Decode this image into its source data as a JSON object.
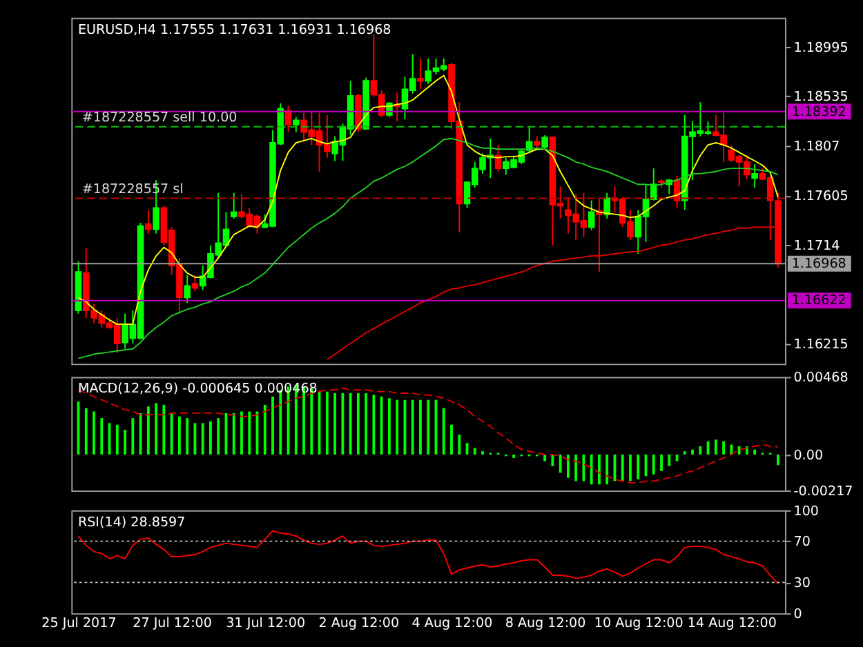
{
  "chart_data": [
    {
      "type": "candlestick",
      "title": "EURUSD,H4  1.17555 1.17631 1.16931 1.16968",
      "categories": [
        null,
        null,
        null,
        null,
        null,
        null,
        null,
        null,
        null,
        null,
        null,
        null,
        null,
        null,
        null,
        null,
        null,
        null,
        null,
        null,
        null,
        null,
        null,
        null,
        null,
        null,
        null,
        null,
        null,
        null,
        null,
        null,
        null,
        null,
        null,
        null,
        null,
        null,
        null,
        null,
        null,
        null,
        null,
        null,
        null,
        null,
        null,
        null,
        null,
        null,
        null,
        null,
        null,
        null,
        null,
        null,
        null,
        null,
        null,
        null,
        null,
        null,
        null,
        null,
        null,
        null,
        null,
        null,
        null,
        null,
        null,
        null,
        null,
        null,
        null,
        null,
        null,
        null,
        null,
        null,
        null,
        null,
        null,
        null,
        null,
        null,
        null,
        null,
        null,
        null,
        null
      ],
      "ohlc": [
        [
          1.1653,
          1.1699,
          1.165,
          1.1689
        ],
        [
          1.1688,
          1.1711,
          1.1646,
          1.1653
        ],
        [
          1.1653,
          1.1659,
          1.1641,
          1.1646
        ],
        [
          1.1649,
          1.1653,
          1.1637,
          1.1641
        ],
        [
          1.1641,
          1.1646,
          1.1636,
          1.1637
        ],
        [
          1.164,
          1.1646,
          1.1613,
          1.1622
        ],
        [
          1.1623,
          1.165,
          1.1617,
          1.164
        ],
        [
          1.1627,
          1.1653,
          1.1622,
          1.164
        ],
        [
          1.1627,
          1.1735,
          1.1626,
          1.1732
        ],
        [
          1.1734,
          1.1747,
          1.1725,
          1.1729
        ],
        [
          1.1729,
          1.1775,
          1.1725,
          1.1749
        ],
        [
          1.1749,
          1.1751,
          1.1714,
          1.1717
        ],
        [
          1.1728,
          1.1731,
          1.1686,
          1.1695
        ],
        [
          1.1696,
          1.1702,
          1.165,
          1.1665
        ],
        [
          1.1665,
          1.1686,
          1.166,
          1.1676
        ],
        [
          1.1678,
          1.1686,
          1.1671,
          1.1674
        ],
        [
          1.1676,
          1.1695,
          1.1672,
          1.1685
        ],
        [
          1.1684,
          1.1714,
          1.1683,
          1.1706
        ],
        [
          1.1705,
          1.1763,
          1.1702,
          1.1716
        ],
        [
          1.1714,
          1.1745,
          1.1713,
          1.1729
        ],
        [
          1.1741,
          1.1763,
          1.1739,
          1.1745
        ],
        [
          1.1745,
          1.1762,
          1.1739,
          1.1741
        ],
        [
          1.1743,
          1.1749,
          1.1731,
          1.1732
        ],
        [
          1.1741,
          1.1743,
          1.1725,
          1.1731
        ],
        [
          1.1731,
          1.1743,
          1.173,
          1.1734
        ],
        [
          1.1732,
          1.1822,
          1.1731,
          1.181
        ],
        [
          1.1809,
          1.1847,
          1.1808,
          1.1842
        ],
        [
          1.184,
          1.1845,
          1.182,
          1.1827
        ],
        [
          1.1827,
          1.1834,
          1.182,
          1.1831
        ],
        [
          1.1831,
          1.1838,
          1.1811,
          1.182
        ],
        [
          1.1822,
          1.1839,
          1.1808,
          1.1816
        ],
        [
          1.1821,
          1.1838,
          1.1783,
          1.1808
        ],
        [
          1.1808,
          1.1836,
          1.1796,
          1.1802
        ],
        [
          1.18,
          1.1816,
          1.1793,
          1.1811
        ],
        [
          1.1808,
          1.1828,
          1.1793,
          1.1825
        ],
        [
          1.1823,
          1.1868,
          1.1817,
          1.1854
        ],
        [
          1.1854,
          1.1856,
          1.182,
          1.1823
        ],
        [
          1.1823,
          1.1871,
          1.1822,
          1.1868
        ],
        [
          1.1868,
          1.1911,
          1.1853,
          1.1855
        ],
        [
          1.1855,
          1.1859,
          1.1834,
          1.1836
        ],
        [
          1.1836,
          1.1848,
          1.1834,
          1.1847
        ],
        [
          1.1845,
          1.1857,
          1.183,
          1.1844
        ],
        [
          1.1842,
          1.1872,
          1.1832,
          1.186
        ],
        [
          1.1859,
          1.1893,
          1.1856,
          1.187
        ],
        [
          1.187,
          1.1889,
          1.186,
          1.1868
        ],
        [
          1.1868,
          1.1889,
          1.1865,
          1.1877
        ],
        [
          1.1877,
          1.1889,
          1.1874,
          1.188
        ],
        [
          1.1879,
          1.1889,
          1.1877,
          1.1882
        ],
        [
          1.1883,
          1.1885,
          1.1823,
          1.183
        ],
        [
          1.183,
          1.1848,
          1.1726,
          1.1753
        ],
        [
          1.1753,
          1.1774,
          1.1749,
          1.1773
        ],
        [
          1.1771,
          1.1792,
          1.1768,
          1.1786
        ],
        [
          1.1785,
          1.18,
          1.1781,
          1.1796
        ],
        [
          1.1796,
          1.1814,
          1.1777,
          1.1798
        ],
        [
          1.1798,
          1.1808,
          1.1783,
          1.1786
        ],
        [
          1.1786,
          1.1796,
          1.178,
          1.1792
        ],
        [
          1.1787,
          1.1798,
          1.1786,
          1.1794
        ],
        [
          1.1792,
          1.1804,
          1.179,
          1.1802
        ],
        [
          1.1803,
          1.1825,
          1.18,
          1.1811
        ],
        [
          1.1811,
          1.1816,
          1.1805,
          1.1808
        ],
        [
          1.1806,
          1.1817,
          1.1805,
          1.1815
        ],
        [
          1.1815,
          1.1816,
          1.1714,
          1.1752
        ],
        [
          1.1753,
          1.1769,
          1.1739,
          1.1751
        ],
        [
          1.1747,
          1.1759,
          1.1725,
          1.1742
        ],
        [
          1.1743,
          1.1762,
          1.1719,
          1.1736
        ],
        [
          1.1737,
          1.1763,
          1.1722,
          1.1731
        ],
        [
          1.1731,
          1.1756,
          1.1728,
          1.1745
        ],
        [
          1.1746,
          1.1759,
          1.1689,
          1.1743
        ],
        [
          1.1743,
          1.1763,
          1.1739,
          1.1758
        ],
        [
          1.1758,
          1.1769,
          1.1745,
          1.1756
        ],
        [
          1.1757,
          1.1759,
          1.1731,
          1.1735
        ],
        [
          1.1736,
          1.1747,
          1.1719,
          1.1722
        ],
        [
          1.1722,
          1.1747,
          1.1706,
          1.1741
        ],
        [
          1.1741,
          1.1771,
          1.1717,
          1.1757
        ],
        [
          1.1757,
          1.1786,
          1.1756,
          1.1771
        ],
        [
          1.1774,
          1.1776,
          1.1768,
          1.1773
        ],
        [
          1.1771,
          1.1776,
          1.1762,
          1.1775
        ],
        [
          1.1775,
          1.1779,
          1.1749,
          1.1756
        ],
        [
          1.1756,
          1.1836,
          1.1747,
          1.1816
        ],
        [
          1.1816,
          1.183,
          1.1775,
          1.182
        ],
        [
          1.1819,
          1.1848,
          1.1816,
          1.1821
        ],
        [
          1.1819,
          1.183,
          1.1817,
          1.182
        ],
        [
          1.182,
          1.1836,
          1.1816,
          1.1817
        ],
        [
          1.1817,
          1.1838,
          1.1792,
          1.1808
        ],
        [
          1.1803,
          1.1808,
          1.1792,
          1.1794
        ],
        [
          1.1797,
          1.1799,
          1.1769,
          1.1792
        ],
        [
          1.1792,
          1.1798,
          1.1776,
          1.178
        ],
        [
          1.1777,
          1.179,
          1.1768,
          1.1781
        ],
        [
          1.1781,
          1.1786,
          1.1775,
          1.1776
        ],
        [
          1.1777,
          1.1779,
          1.1719,
          1.1756
        ],
        [
          1.17555,
          1.17631,
          1.16931,
          1.16968
        ]
      ],
      "colors": [
        "#00ff00",
        "#ff0000",
        "#ff0000",
        "#ff0000",
        "#ff0000",
        "#ff0000",
        "#00ff00",
        "#00ff00",
        "#00ff00",
        "#ff0000",
        "#00ff00",
        "#ff0000",
        "#ff0000",
        "#ff0000",
        "#00ff00",
        "#ff0000",
        "#00ff00",
        "#00ff00",
        "#00ff00",
        "#00ff00",
        "#00ff00",
        "#ff0000",
        "#ff0000",
        "#ff0000",
        "#00ff00",
        "#00ff00",
        "#00ff00",
        "#ff0000",
        "#00ff00",
        "#ff0000",
        "#ff0000",
        "#ff0000",
        "#ff0000",
        "#00ff00",
        "#00ff00",
        "#00ff00",
        "#ff0000",
        "#00ff00",
        "#ff0000",
        "#ff0000",
        "#00ff00",
        "#ff0000",
        "#00ff00",
        "#00ff00",
        "#ff0000",
        "#00ff00",
        "#00ff00",
        "#00ff00",
        "#ff0000",
        "#ff0000",
        "#00ff00",
        "#00ff00",
        "#00ff00",
        "#00ff00",
        "#ff0000",
        "#00ff00",
        "#00ff00",
        "#00ff00",
        "#00ff00",
        "#ff0000",
        "#00ff00",
        "#ff0000",
        "#ff0000",
        "#ff0000",
        "#ff0000",
        "#ff0000",
        "#00ff00",
        "#ff0000",
        "#00ff00",
        "#ff0000",
        "#ff0000",
        "#ff0000",
        "#00ff00",
        "#00ff00",
        "#00ff00",
        "#ff0000",
        "#00ff00",
        "#ff0000",
        "#00ff00",
        "#00ff00",
        "#00ff00",
        "#00ff00",
        "#ff0000",
        "#ff0000",
        "#ff0000",
        "#ff0000",
        "#ff0000",
        "#00ff00",
        "#ff0000",
        "#ff0000",
        "#ff0000"
      ],
      "series": [
        {
          "type": "line",
          "color": "#ffff00",
          "values": [
            1.1665,
            1.1661,
            1.1654,
            1.1649,
            1.1644,
            1.164,
            1.164,
            1.164,
            1.1671,
            1.1691,
            1.1704,
            1.1712,
            1.1707,
            1.1696,
            1.1688,
            1.1684,
            1.1684,
            1.1693,
            1.1702,
            1.1713,
            1.1724,
            1.1728,
            1.1732,
            1.1731,
            1.1738,
            1.1755,
            1.1784,
            1.1801,
            1.181,
            1.1812,
            1.1814,
            1.1811,
            1.1809,
            1.1811,
            1.1812,
            1.1815,
            1.1826,
            1.1836,
            1.1843,
            1.1844,
            1.1844,
            1.1846,
            1.1847,
            1.185,
            1.1856,
            1.1862,
            1.1868,
            1.1873,
            1.1858,
            1.1832,
            1.1808,
            1.1802,
            1.1798,
            1.1797,
            1.1796,
            1.1797,
            1.1797,
            1.1798,
            1.1801,
            1.1804,
            1.1804,
            1.1798,
            1.1783,
            1.177,
            1.1757,
            1.1751,
            1.1748,
            1.1745,
            1.1744,
            1.1743,
            1.1742,
            1.174,
            1.1741,
            1.1746,
            1.1751,
            1.1757,
            1.1759,
            1.1761,
            1.1765,
            1.1784,
            1.1798,
            1.1808,
            1.181,
            1.1808,
            1.1805,
            1.1801,
            1.1797,
            1.1793,
            1.1789,
            1.1782,
            1.1759
          ]
        },
        {
          "type": "line",
          "color": "#22cc22",
          "values": [
            1.1608,
            1.161,
            1.1612,
            1.1613,
            1.1614,
            1.1615,
            1.1616,
            1.1617,
            1.1623,
            1.1631,
            1.1637,
            1.1642,
            1.1648,
            1.1651,
            1.1654,
            1.1656,
            1.1659,
            1.1661,
            1.1665,
            1.1668,
            1.1671,
            1.1675,
            1.1678,
            1.1683,
            1.1688,
            1.1696,
            1.1704,
            1.1712,
            1.1718,
            1.1724,
            1.173,
            1.1735,
            1.1739,
            1.1744,
            1.175,
            1.1758,
            1.1763,
            1.1768,
            1.1774,
            1.1777,
            1.1781,
            1.1785,
            1.1788,
            1.1792,
            1.1797,
            1.1802,
            1.1807,
            1.1813,
            1.1814,
            1.1812,
            1.181,
            1.1807,
            1.1805,
            1.1805,
            1.1804,
            1.1804,
            1.1804,
            1.1804,
            1.1804,
            1.1805,
            1.1804,
            1.1802,
            1.1799,
            1.1796,
            1.1792,
            1.179,
            1.1787,
            1.1785,
            1.1783,
            1.178,
            1.1777,
            1.1774,
            1.1771,
            1.1771,
            1.177,
            1.1771,
            1.1773,
            1.1775,
            1.1778,
            1.1781,
            1.1781,
            1.1782,
            1.1783,
            1.1785,
            1.1786,
            1.1786,
            1.1786,
            1.1785,
            1.1784,
            1.1783,
            1.178
          ]
        },
        {
          "type": "line",
          "color": "#e00000",
          "values": [
            null,
            null,
            null,
            null,
            null,
            null,
            null,
            null,
            null,
            null,
            null,
            null,
            null,
            null,
            null,
            null,
            null,
            null,
            null,
            null,
            null,
            null,
            null,
            null,
            null,
            null,
            null,
            null,
            null,
            null,
            null,
            null,
            1.1607,
            1.1612,
            1.1617,
            1.1622,
            1.1627,
            1.1632,
            1.1636,
            1.164,
            1.1644,
            1.1648,
            1.1652,
            1.1656,
            1.166,
            1.1663,
            1.1666,
            1.167,
            1.1673,
            1.1674,
            1.1676,
            1.1677,
            1.1679,
            1.1681,
            1.1683,
            1.1685,
            1.1687,
            1.1689,
            1.1692,
            1.1695,
            1.1697,
            1.1699,
            1.17,
            1.1701,
            1.1702,
            1.1703,
            1.1704,
            1.1704,
            1.1705,
            1.1706,
            1.1707,
            1.1708,
            1.1708,
            1.171,
            1.1712,
            1.1714,
            1.1715,
            1.1717,
            1.1719,
            1.172,
            1.1722,
            1.1724,
            1.1725,
            1.1727,
            1.1728,
            1.173,
            1.173,
            1.1731,
            1.1731,
            1.1731,
            1.1731
          ]
        }
      ],
      "ref_lines": [
        {
          "axis": "y",
          "value": 1.18392,
          "label": "1.18392",
          "color": "#c000c0",
          "line_style": "solid"
        },
        {
          "axis": "y",
          "value": 1.1825,
          "label": "#187228557 sell 10.00",
          "color": "#00c000",
          "line_style": "dashed"
        },
        {
          "axis": "y",
          "value": 1.1758,
          "label": "#187228557 sl",
          "color": "#c00000",
          "line_style": "dashed"
        },
        {
          "axis": "y",
          "value": 1.16968,
          "label": "1.16968",
          "color": "#a0a0a0",
          "line_style": "solid"
        },
        {
          "axis": "y",
          "value": 1.16622,
          "label": "1.16622",
          "color": "#c000c0",
          "line_style": "solid"
        }
      ],
      "ylim": [
        1.1603,
        1.1927
      ],
      "yticks": [
        1.18995,
        1.18535,
        1.1807,
        1.17605,
        1.1714,
        1.16215
      ],
      "tick_labels": "y"
    },
    {
      "type": "bar",
      "title": "MACD(12,26,9) -0.000645 0.000468",
      "color": "#00ff00",
      "categories": [
        null,
        null,
        null,
        null,
        null,
        null,
        null,
        null,
        null,
        null,
        null,
        null,
        null,
        null,
        null,
        null,
        null,
        null,
        null,
        null,
        null,
        null,
        null,
        null,
        null,
        null,
        null,
        null,
        null,
        null,
        null,
        null,
        null,
        null,
        null,
        null,
        null,
        null,
        null,
        null,
        null,
        null,
        null,
        null,
        null,
        null,
        null,
        null,
        null,
        null,
        null,
        null,
        null,
        null,
        null,
        null,
        null,
        null,
        null,
        null,
        null,
        null,
        null,
        null,
        null,
        null,
        null,
        null,
        null,
        null,
        null,
        null,
        null,
        null,
        null,
        null,
        null,
        null,
        null,
        null,
        null,
        null,
        null,
        null,
        null,
        null,
        null,
        null,
        null,
        null,
        null
      ],
      "values": [
        0.0032,
        0.0028,
        0.0026,
        0.0022,
        0.0019,
        0.0018,
        0.0015,
        0.0022,
        0.0025,
        0.0029,
        0.0031,
        0.003,
        0.0025,
        0.0023,
        0.0022,
        0.0019,
        0.0019,
        0.002,
        0.0022,
        0.0025,
        0.0025,
        0.0026,
        0.0026,
        0.0026,
        0.003,
        0.0035,
        0.0039,
        0.0041,
        0.0042,
        0.0041,
        0.004,
        0.0038,
        0.0038,
        0.0037,
        0.0037,
        0.0037,
        0.0037,
        0.0037,
        0.0036,
        0.0035,
        0.0034,
        0.0033,
        0.0033,
        0.0033,
        0.0033,
        0.0033,
        0.0033,
        0.0028,
        0.0018,
        0.0012,
        0.0007,
        0.0004,
        0.0002,
        0.0001,
        0.0001,
        -0.0001,
        -0.0002,
        -0.0001,
        -0.0001,
        -0.0001,
        -0.0004,
        -0.0007,
        -0.0011,
        -0.0014,
        -0.0016,
        -0.0016,
        -0.0018,
        -0.0018,
        -0.0018,
        -0.0016,
        -0.0016,
        -0.0016,
        -0.0015,
        -0.0013,
        -0.0012,
        -0.001,
        -0.0007,
        -0.0004,
        0.0002,
        0.0003,
        0.0005,
        0.0008,
        0.0009,
        0.0008,
        0.0006,
        0.0005,
        0.0005,
        0.0003,
        0.0001,
        0.0001,
        -0.000645
      ],
      "series": [
        {
          "type": "line",
          "color": "#e00000",
          "line_style": "dashed",
          "values": [
            0.0039,
            0.0037,
            0.0035,
            0.0033,
            0.0031,
            0.0029,
            0.0027,
            0.0026,
            0.0024,
            0.0024,
            0.0024,
            0.0024,
            0.0025,
            0.0025,
            0.0025,
            0.0025,
            0.0025,
            0.0025,
            0.0025,
            0.0024,
            0.0024,
            0.0023,
            0.0023,
            0.0024,
            0.0026,
            0.0028,
            0.003,
            0.0032,
            0.0034,
            0.0035,
            0.0037,
            0.0038,
            0.0039,
            0.0039,
            0.004,
            0.0039,
            0.0039,
            0.0039,
            0.0038,
            0.0038,
            0.0038,
            0.0037,
            0.0037,
            0.0037,
            0.0036,
            0.0036,
            0.0035,
            0.0034,
            0.0032,
            0.003,
            0.0027,
            0.0023,
            0.002,
            0.0017,
            0.0013,
            0.001,
            0.0006,
            0.0003,
            0.0002,
            0.0001,
            0.0,
            0.0,
            -0.0001,
            -0.0003,
            -0.0004,
            -0.0006,
            -0.0008,
            -0.0011,
            -0.0013,
            -0.0015,
            -0.0016,
            -0.0017,
            -0.0017,
            -0.0016,
            -0.0016,
            -0.0015,
            -0.0014,
            -0.0013,
            -0.0011,
            -0.001,
            -0.0008,
            -0.0006,
            -0.0004,
            -0.0002,
            0.0,
            0.0003,
            0.0004,
            0.0005,
            0.0006,
            0.0005,
            0.000468
          ]
        }
      ],
      "ylim": [
        -0.00217,
        0.00468
      ],
      "yticks": [
        0.00468,
        {
          "value": 0,
          "label": "0.00"
        },
        -0.00217
      ],
      "tick_labels": "y"
    },
    {
      "type": "line",
      "title": "RSI(14) 28.8597",
      "color": "#ff0000",
      "categories": [
        "25 Jul 2017",
        null,
        null,
        null,
        null,
        null,
        null,
        null,
        null,
        null,
        null,
        null,
        "27 Jul 12:00",
        null,
        null,
        null,
        null,
        null,
        null,
        null,
        null,
        null,
        null,
        null,
        "31 Jul 12:00",
        null,
        null,
        null,
        null,
        null,
        null,
        null,
        null,
        null,
        null,
        null,
        "2 Aug 12:00",
        null,
        null,
        null,
        null,
        null,
        null,
        null,
        null,
        null,
        null,
        null,
        "4 Aug 12:00",
        null,
        null,
        null,
        null,
        null,
        null,
        null,
        null,
        null,
        null,
        null,
        "8 Aug 12:00",
        null,
        null,
        null,
        null,
        null,
        null,
        null,
        null,
        null,
        null,
        null,
        "10 Aug 12:00",
        null,
        null,
        null,
        null,
        null,
        null,
        null,
        null,
        null,
        null,
        null,
        "14 Aug 12:00",
        null,
        null,
        null,
        null,
        null,
        null
      ],
      "values": [
        75,
        66,
        60,
        58,
        53,
        56,
        53,
        66,
        72,
        73,
        67,
        62,
        55,
        55,
        56,
        57,
        60,
        64,
        66,
        68,
        67,
        66,
        65,
        64,
        72,
        80,
        78,
        77,
        75,
        71,
        68,
        67,
        68,
        71,
        75,
        68,
        70,
        70,
        66,
        65,
        66,
        67,
        68,
        70,
        70,
        71,
        71,
        58,
        38,
        42,
        44,
        46,
        47,
        45,
        46,
        48,
        49,
        51,
        52,
        52,
        45,
        37,
        37,
        36,
        34,
        35,
        37,
        41,
        43,
        40,
        36,
        39,
        44,
        48,
        52,
        52,
        49,
        55,
        64,
        65,
        65,
        64,
        62,
        57,
        55,
        53,
        50,
        49,
        46,
        37,
        28.8597
      ],
      "ref_lines": [
        {
          "axis": "y",
          "value": 70,
          "color": "#c0c0c0",
          "line_style": "dotted"
        },
        {
          "axis": "y",
          "value": 30,
          "color": "#c0c0c0",
          "line_style": "dotted"
        }
      ],
      "ylim": [
        0,
        100
      ],
      "yticks": [
        100,
        70,
        30,
        0
      ]
    }
  ]
}
